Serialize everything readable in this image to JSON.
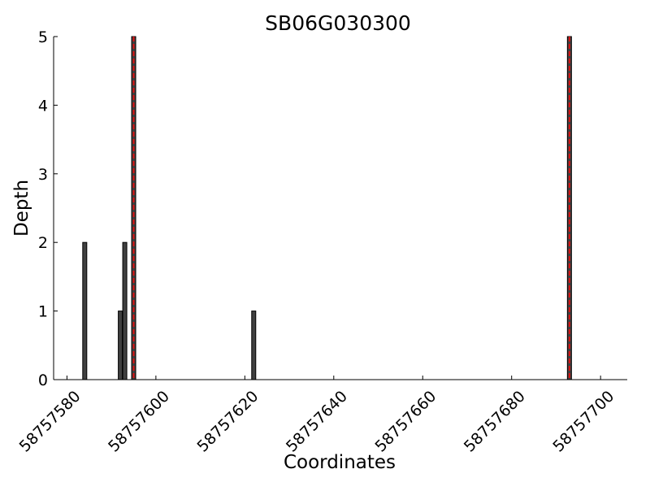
{
  "chart_data": {
    "type": "bar",
    "title": "SB06G030300",
    "xlabel": "Coordinates",
    "ylabel": "Depth",
    "xlim": [
      58757577,
      58757706
    ],
    "ylim": [
      0,
      5
    ],
    "xticks": [
      58757580,
      58757600,
      58757620,
      58757640,
      58757660,
      58757680,
      58757700
    ],
    "xtick_labels": [
      "58757580",
      "58757600",
      "58757620",
      "58757640",
      "58757660",
      "58757680",
      "58757700"
    ],
    "yticks": [
      0,
      1,
      2,
      3,
      4,
      5
    ],
    "ytick_labels": [
      "0",
      "1",
      "2",
      "3",
      "4",
      "5"
    ],
    "grid": false,
    "bar_color": "#404040",
    "highlight_color": "#dd1111",
    "bars": [
      {
        "x": 58757584,
        "value": 2
      },
      {
        "x": 58757592,
        "value": 1
      },
      {
        "x": 58757593,
        "value": 2
      },
      {
        "x": 58757595,
        "value": 5,
        "highlight": true
      },
      {
        "x": 58757622,
        "value": 1
      },
      {
        "x": 58757693,
        "value": 5,
        "highlight": true
      }
    ]
  }
}
